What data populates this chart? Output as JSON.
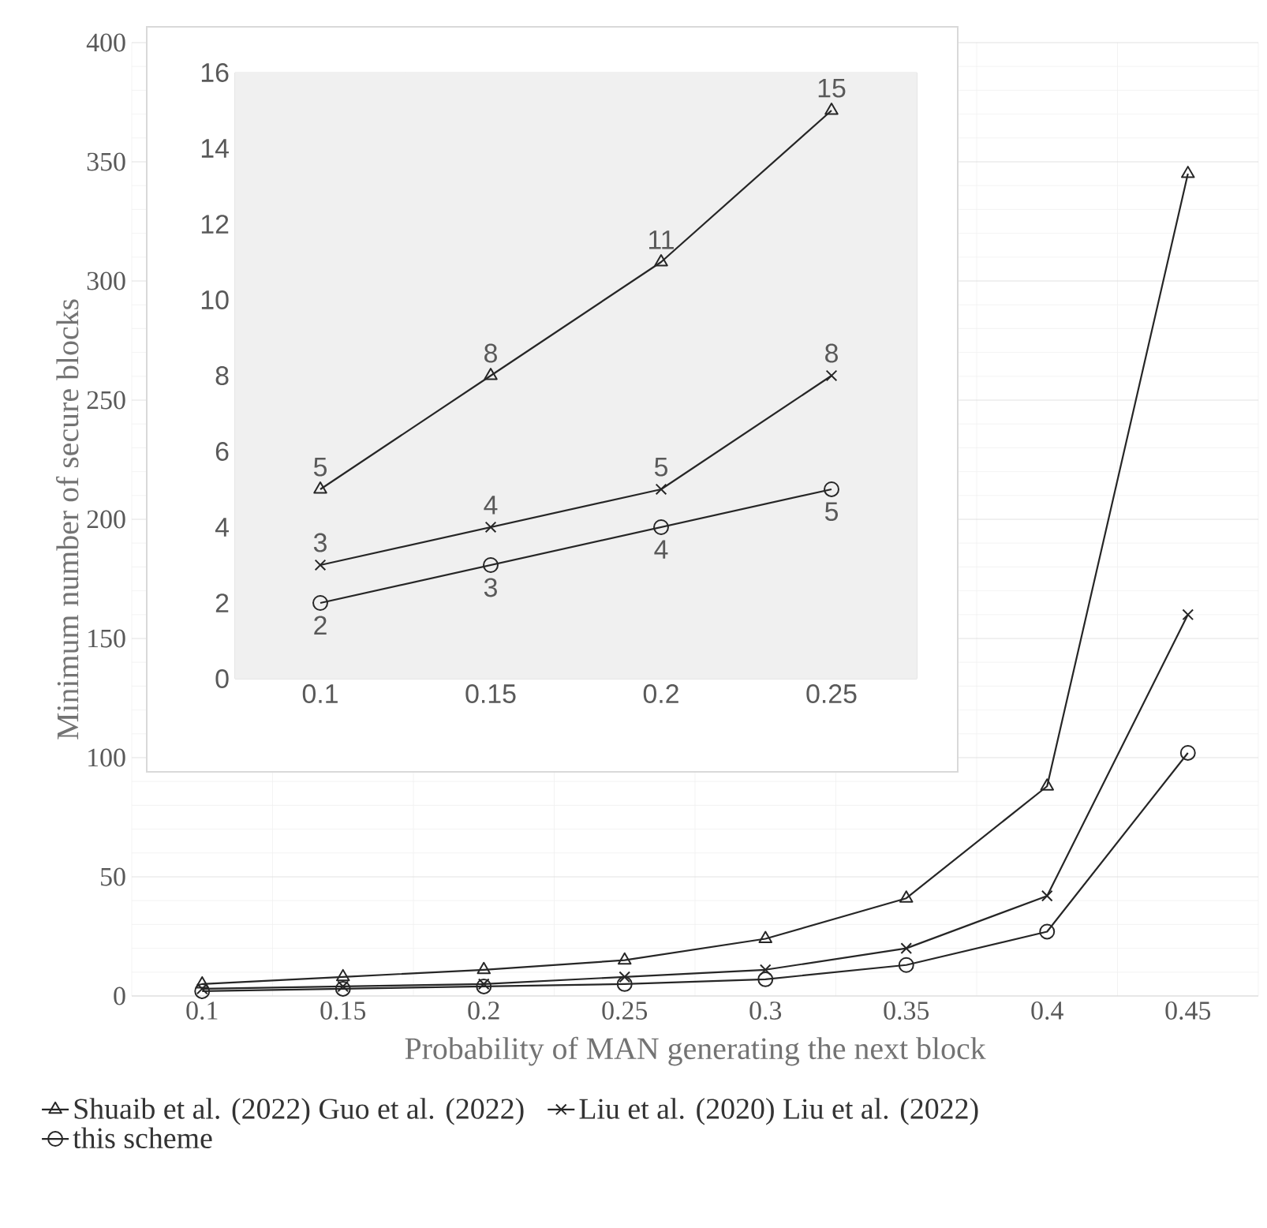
{
  "chart_data": [
    {
      "type": "line",
      "xlabel": "Probability of MAN generating the next block",
      "ylabel": "Minimum number of secure blocks",
      "categories": [
        "0.1",
        "0.15",
        "0.2",
        "0.25",
        "0.3",
        "0.35",
        "0.4",
        "0.45"
      ],
      "ylim": [
        0,
        400
      ],
      "yticks": [
        0,
        50,
        100,
        150,
        200,
        250,
        300,
        350,
        400
      ],
      "grid": true,
      "legend": "bottom",
      "series": [
        {
          "name": "Shuaib et al. (2022) Guo et al. (2022)",
          "color": "#262626",
          "marker": "triangle",
          "values": [
            5,
            8,
            11,
            15,
            24,
            41,
            88,
            345
          ]
        },
        {
          "name": "Liu et al. (2020) Liu et al. (2022)",
          "color": "#262626",
          "marker": "cross",
          "values": [
            3,
            4,
            5,
            8,
            11,
            20,
            42,
            160
          ]
        },
        {
          "name": "this scheme",
          "color": "#262626",
          "marker": "circle",
          "values": [
            2,
            3,
            4,
            5,
            7,
            13,
            27,
            102
          ]
        }
      ]
    },
    {
      "type": "line",
      "categories": [
        "0.1",
        "0.15",
        "0.2",
        "0.25"
      ],
      "ylim": [
        0,
        16
      ],
      "yticks": [
        0,
        2,
        4,
        6,
        8,
        10,
        12,
        14,
        16
      ],
      "grid": true,
      "data_labels": true,
      "series": [
        {
          "color": "#262626",
          "marker": "triangle",
          "values": [
            5,
            8,
            11,
            15
          ]
        },
        {
          "color": "#262626",
          "marker": "cross",
          "values": [
            3,
            4,
            5,
            8
          ]
        },
        {
          "color": "#262626",
          "marker": "circle",
          "values": [
            2,
            3,
            4,
            5
          ]
        }
      ]
    }
  ]
}
